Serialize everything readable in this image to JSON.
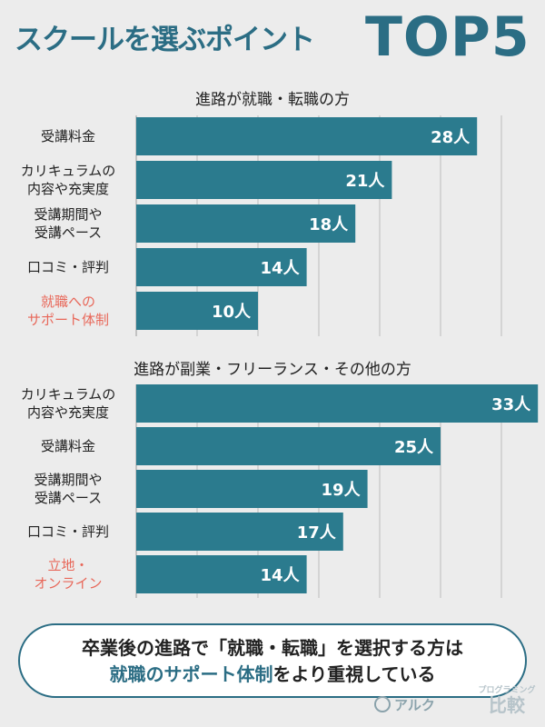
{
  "header": {
    "title_main": "スクールを選ぶポイント",
    "title_rank": "TOP5"
  },
  "chart_data": [
    {
      "type": "bar",
      "orientation": "horizontal",
      "title": "進路が就職・転職の方",
      "categories": [
        [
          "受講料金"
        ],
        [
          "カリキュラムの",
          "内容や充実度"
        ],
        [
          "受講期間や",
          "受講ペース"
        ],
        [
          "口コミ・評判"
        ],
        [
          "就職への",
          "サポート体制"
        ]
      ],
      "accent_category_index": 4,
      "values": [
        28,
        21,
        18,
        14,
        10
      ],
      "value_labels": [
        "28人",
        "21人",
        "18人",
        "14人",
        "10人"
      ],
      "unit": "人",
      "xlim": [
        0,
        35
      ],
      "grid": true,
      "bar_color": "#2b7b8e",
      "accent_label_color": "#e8685a"
    },
    {
      "type": "bar",
      "orientation": "horizontal",
      "title": "進路が副業・フリーランス・その他の方",
      "categories": [
        [
          "カリキュラムの",
          "内容や充実度"
        ],
        [
          "受講料金"
        ],
        [
          "受講期間や",
          "受講ペース"
        ],
        [
          "口コミ・評判"
        ],
        [
          "立地・",
          "オンライン"
        ]
      ],
      "accent_category_index": 4,
      "values": [
        33,
        25,
        19,
        17,
        14
      ],
      "value_labels": [
        "33人",
        "25人",
        "19人",
        "17人",
        "14人"
      ],
      "unit": "人",
      "xlim": [
        0,
        35
      ],
      "grid": true,
      "bar_color": "#2b7b8e",
      "accent_label_color": "#e8685a"
    }
  ],
  "conclusion": {
    "line1": "卒業後の進路で「就職・転職」を選択する方は",
    "line2_highlight": "就職のサポート体制",
    "line2_rest": "をより重視している"
  },
  "footer": {
    "logo_text": "アルク",
    "brand_small": "プログラミング",
    "brand_big": "比較"
  }
}
